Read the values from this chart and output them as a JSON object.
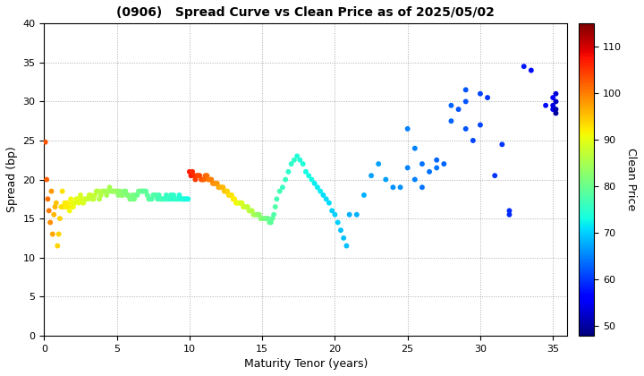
{
  "title": "(0906)   Spread Curve vs Clean Price as of 2025/05/02",
  "xlabel": "Maturity Tenor (years)",
  "ylabel": "Spread (bp)",
  "colorbar_label": "Clean Price",
  "xlim": [
    0,
    36
  ],
  "ylim": [
    0,
    40
  ],
  "xticks": [
    0,
    5,
    10,
    15,
    20,
    25,
    30,
    35
  ],
  "yticks": [
    0,
    5,
    10,
    15,
    20,
    25,
    30,
    35,
    40
  ],
  "cbar_ticks": [
    50,
    60,
    70,
    80,
    90,
    100,
    110
  ],
  "color_min": 48,
  "color_max": 115,
  "scatter_points": [
    [
      0.08,
      24.8,
      103
    ],
    [
      0.17,
      20.0,
      102
    ],
    [
      0.25,
      17.5,
      101
    ],
    [
      0.33,
      16.0,
      100
    ],
    [
      0.42,
      14.5,
      99
    ],
    [
      0.5,
      18.5,
      98
    ],
    [
      0.58,
      13.0,
      97
    ],
    [
      0.67,
      15.5,
      96
    ],
    [
      0.75,
      16.5,
      96
    ],
    [
      0.83,
      17.0,
      95
    ],
    [
      0.92,
      11.5,
      94
    ],
    [
      1.0,
      13.0,
      94
    ],
    [
      1.08,
      15.0,
      94
    ],
    [
      1.17,
      16.5,
      93
    ],
    [
      1.25,
      18.5,
      93
    ],
    [
      1.33,
      16.5,
      93
    ],
    [
      1.42,
      17.0,
      92
    ],
    [
      1.5,
      16.5,
      92
    ],
    [
      1.58,
      17.0,
      92
    ],
    [
      1.67,
      16.5,
      92
    ],
    [
      1.75,
      16.0,
      91
    ],
    [
      1.83,
      17.5,
      91
    ],
    [
      1.92,
      17.0,
      91
    ],
    [
      2.0,
      16.5,
      91
    ],
    [
      2.1,
      17.0,
      90
    ],
    [
      2.2,
      17.5,
      90
    ],
    [
      2.3,
      17.5,
      90
    ],
    [
      2.4,
      17.0,
      90
    ],
    [
      2.5,
      18.0,
      89
    ],
    [
      2.6,
      17.5,
      89
    ],
    [
      2.7,
      17.0,
      89
    ],
    [
      2.8,
      17.5,
      89
    ],
    [
      2.9,
      17.5,
      88
    ],
    [
      3.0,
      17.5,
      88
    ],
    [
      3.1,
      18.0,
      88
    ],
    [
      3.2,
      18.0,
      88
    ],
    [
      3.3,
      17.5,
      87
    ],
    [
      3.4,
      17.5,
      87
    ],
    [
      3.5,
      18.0,
      87
    ],
    [
      3.6,
      18.5,
      87
    ],
    [
      3.7,
      18.5,
      86
    ],
    [
      3.8,
      17.5,
      86
    ],
    [
      3.9,
      18.0,
      86
    ],
    [
      4.0,
      18.5,
      86
    ],
    [
      4.1,
      18.5,
      86
    ],
    [
      4.2,
      18.5,
      85
    ],
    [
      4.3,
      18.0,
      85
    ],
    [
      4.4,
      18.5,
      85
    ],
    [
      4.5,
      19.0,
      85
    ],
    [
      4.6,
      18.5,
      84
    ],
    [
      4.7,
      18.5,
      84
    ],
    [
      4.8,
      18.5,
      84
    ],
    [
      4.9,
      18.5,
      84
    ],
    [
      5.0,
      18.5,
      84
    ],
    [
      5.1,
      18.0,
      83
    ],
    [
      5.2,
      18.5,
      83
    ],
    [
      5.3,
      18.0,
      83
    ],
    [
      5.4,
      18.0,
      83
    ],
    [
      5.5,
      18.5,
      82
    ],
    [
      5.6,
      18.5,
      82
    ],
    [
      5.7,
      18.0,
      82
    ],
    [
      5.8,
      18.0,
      82
    ],
    [
      5.9,
      17.5,
      82
    ],
    [
      6.0,
      17.5,
      81
    ],
    [
      6.1,
      18.0,
      81
    ],
    [
      6.2,
      17.5,
      81
    ],
    [
      6.3,
      18.0,
      81
    ],
    [
      6.4,
      18.0,
      80
    ],
    [
      6.5,
      18.5,
      80
    ],
    [
      6.6,
      18.5,
      80
    ],
    [
      6.7,
      18.5,
      80
    ],
    [
      6.8,
      18.5,
      79
    ],
    [
      6.9,
      18.5,
      79
    ],
    [
      7.0,
      18.5,
      79
    ],
    [
      7.1,
      18.0,
      79
    ],
    [
      7.2,
      17.5,
      79
    ],
    [
      7.3,
      17.5,
      78
    ],
    [
      7.4,
      17.5,
      78
    ],
    [
      7.5,
      18.0,
      78
    ],
    [
      7.6,
      18.0,
      78
    ],
    [
      7.7,
      18.0,
      78
    ],
    [
      7.8,
      17.5,
      77
    ],
    [
      7.9,
      18.0,
      77
    ],
    [
      8.0,
      17.5,
      77
    ],
    [
      8.1,
      17.5,
      77
    ],
    [
      8.2,
      17.5,
      77
    ],
    [
      8.3,
      17.5,
      76
    ],
    [
      8.4,
      18.0,
      76
    ],
    [
      8.5,
      17.5,
      76
    ],
    [
      8.6,
      17.5,
      76
    ],
    [
      8.7,
      18.0,
      76
    ],
    [
      8.8,
      17.5,
      75
    ],
    [
      8.9,
      18.0,
      75
    ],
    [
      9.0,
      17.5,
      75
    ],
    [
      9.1,
      17.5,
      75
    ],
    [
      9.2,
      17.5,
      75
    ],
    [
      9.3,
      18.0,
      74
    ],
    [
      9.4,
      17.5,
      74
    ],
    [
      9.5,
      17.5,
      74
    ],
    [
      9.6,
      17.5,
      74
    ],
    [
      9.7,
      17.5,
      74
    ],
    [
      9.8,
      17.5,
      73
    ],
    [
      9.9,
      17.5,
      73
    ],
    [
      10.0,
      21.0,
      107
    ],
    [
      10.1,
      20.5,
      107
    ],
    [
      10.2,
      21.0,
      106
    ],
    [
      10.3,
      20.5,
      106
    ],
    [
      10.4,
      20.0,
      105
    ],
    [
      10.5,
      20.5,
      105
    ],
    [
      10.6,
      20.5,
      104
    ],
    [
      10.7,
      20.5,
      104
    ],
    [
      10.8,
      20.0,
      103
    ],
    [
      10.9,
      20.0,
      103
    ],
    [
      11.0,
      20.0,
      102
    ],
    [
      11.1,
      20.5,
      102
    ],
    [
      11.2,
      20.5,
      101
    ],
    [
      11.3,
      20.0,
      101
    ],
    [
      11.4,
      20.0,
      100
    ],
    [
      11.5,
      20.0,
      100
    ],
    [
      11.6,
      19.5,
      99
    ],
    [
      11.7,
      19.5,
      99
    ],
    [
      11.8,
      19.5,
      98
    ],
    [
      11.9,
      19.5,
      98
    ],
    [
      12.0,
      19.0,
      97
    ],
    [
      12.1,
      19.0,
      97
    ],
    [
      12.2,
      19.0,
      96
    ],
    [
      12.3,
      19.0,
      96
    ],
    [
      12.4,
      18.5,
      95
    ],
    [
      12.5,
      18.5,
      95
    ],
    [
      12.6,
      18.5,
      94
    ],
    [
      12.7,
      18.0,
      94
    ],
    [
      12.8,
      18.0,
      93
    ],
    [
      12.9,
      18.0,
      93
    ],
    [
      13.0,
      17.5,
      92
    ],
    [
      13.1,
      17.5,
      92
    ],
    [
      13.2,
      17.0,
      91
    ],
    [
      13.3,
      17.0,
      91
    ],
    [
      13.4,
      17.0,
      90
    ],
    [
      13.5,
      17.0,
      90
    ],
    [
      13.6,
      17.0,
      89
    ],
    [
      13.7,
      16.5,
      89
    ],
    [
      13.8,
      16.5,
      88
    ],
    [
      13.9,
      16.5,
      88
    ],
    [
      14.0,
      16.5,
      87
    ],
    [
      14.1,
      16.0,
      87
    ],
    [
      14.2,
      16.0,
      86
    ],
    [
      14.3,
      16.0,
      86
    ],
    [
      14.4,
      15.5,
      85
    ],
    [
      14.5,
      15.5,
      85
    ],
    [
      14.6,
      15.5,
      84
    ],
    [
      14.7,
      15.5,
      84
    ],
    [
      14.8,
      15.5,
      83
    ],
    [
      14.9,
      15.0,
      83
    ],
    [
      15.0,
      15.0,
      82
    ],
    [
      15.1,
      15.0,
      82
    ],
    [
      15.2,
      15.0,
      81
    ],
    [
      15.3,
      15.0,
      81
    ],
    [
      15.4,
      15.0,
      80
    ],
    [
      15.5,
      14.5,
      80
    ],
    [
      15.6,
      14.5,
      79
    ],
    [
      15.7,
      15.0,
      79
    ],
    [
      15.8,
      15.5,
      78
    ],
    [
      15.9,
      16.5,
      78
    ],
    [
      16.0,
      17.5,
      77
    ],
    [
      16.2,
      18.5,
      77
    ],
    [
      16.4,
      19.0,
      76
    ],
    [
      16.6,
      20.0,
      76
    ],
    [
      16.8,
      21.0,
      75
    ],
    [
      17.0,
      22.0,
      75
    ],
    [
      17.2,
      22.5,
      75
    ],
    [
      17.4,
      23.0,
      74
    ],
    [
      17.6,
      22.5,
      74
    ],
    [
      17.8,
      22.0,
      74
    ],
    [
      18.0,
      21.0,
      73
    ],
    [
      18.2,
      20.5,
      73
    ],
    [
      18.4,
      20.0,
      73
    ],
    [
      18.6,
      19.5,
      72
    ],
    [
      18.8,
      19.0,
      72
    ],
    [
      19.0,
      18.5,
      72
    ],
    [
      19.2,
      18.0,
      71
    ],
    [
      19.4,
      17.5,
      71
    ],
    [
      19.6,
      17.0,
      71
    ],
    [
      19.8,
      16.0,
      70
    ],
    [
      20.0,
      15.5,
      70
    ],
    [
      20.2,
      14.5,
      70
    ],
    [
      20.4,
      13.5,
      69
    ],
    [
      20.6,
      12.5,
      69
    ],
    [
      20.8,
      11.5,
      69
    ],
    [
      21.0,
      15.5,
      68
    ],
    [
      21.5,
      15.5,
      68
    ],
    [
      22.0,
      18.0,
      68
    ],
    [
      22.5,
      20.5,
      67
    ],
    [
      23.0,
      22.0,
      67
    ],
    [
      23.5,
      20.0,
      67
    ],
    [
      24.0,
      19.0,
      66
    ],
    [
      24.5,
      19.0,
      66
    ],
    [
      25.0,
      26.5,
      65
    ],
    [
      25.0,
      21.5,
      65
    ],
    [
      25.5,
      24.0,
      65
    ],
    [
      25.5,
      20.0,
      65
    ],
    [
      26.0,
      19.0,
      64
    ],
    [
      26.0,
      22.0,
      64
    ],
    [
      26.5,
      21.0,
      64
    ],
    [
      27.0,
      21.5,
      64
    ],
    [
      27.0,
      22.5,
      63
    ],
    [
      27.5,
      22.0,
      63
    ],
    [
      28.0,
      29.5,
      63
    ],
    [
      28.0,
      27.5,
      63
    ],
    [
      28.5,
      29.0,
      62
    ],
    [
      29.0,
      31.5,
      62
    ],
    [
      29.0,
      30.0,
      62
    ],
    [
      29.0,
      26.5,
      62
    ],
    [
      29.5,
      25.0,
      61
    ],
    [
      30.0,
      27.0,
      61
    ],
    [
      30.0,
      31.0,
      61
    ],
    [
      30.5,
      30.5,
      60
    ],
    [
      31.0,
      20.5,
      60
    ],
    [
      31.5,
      24.5,
      60
    ],
    [
      32.0,
      16.0,
      59
    ],
    [
      32.0,
      15.5,
      59
    ],
    [
      33.0,
      34.5,
      58
    ],
    [
      33.5,
      34.0,
      57
    ],
    [
      34.5,
      29.5,
      57
    ],
    [
      35.0,
      30.5,
      56
    ],
    [
      35.0,
      29.0,
      55
    ],
    [
      35.0,
      29.5,
      54
    ],
    [
      35.2,
      31.0,
      53
    ],
    [
      35.2,
      30.0,
      52
    ],
    [
      35.2,
      29.0,
      51
    ],
    [
      35.2,
      28.5,
      50
    ]
  ]
}
